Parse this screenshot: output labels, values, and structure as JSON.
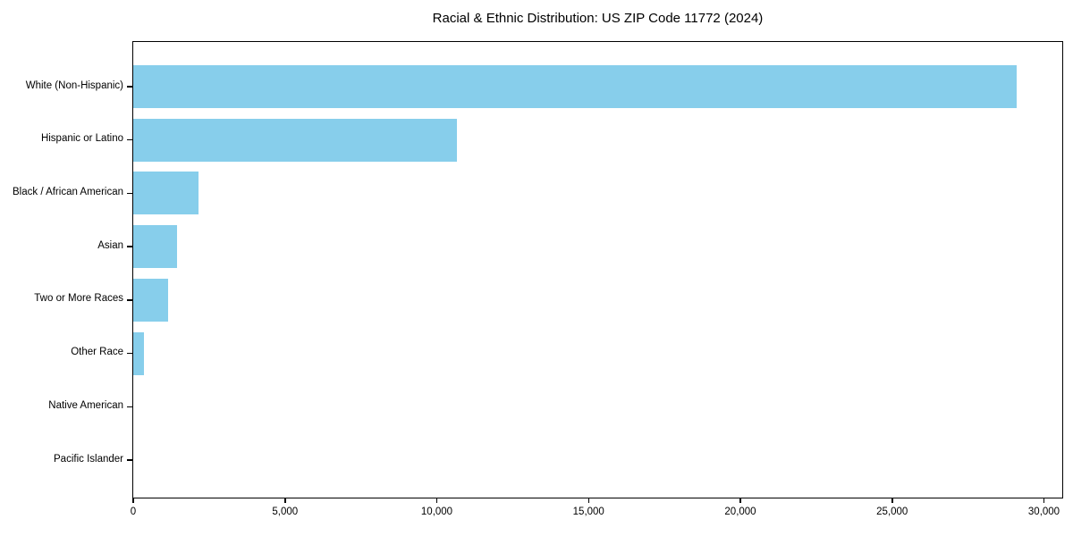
{
  "title": "Racial & Ethnic Distribution: US ZIP Code 11772 (2024)",
  "chart_data": {
    "type": "bar",
    "orientation": "horizontal",
    "title": "Racial & Ethnic Distribution: US ZIP Code 11772 (2024)",
    "categories": [
      "White (Non-Hispanic)",
      "Hispanic or Latino",
      "Black / African American",
      "Asian",
      "Two or More Races",
      "Other Race",
      "Native American",
      "Pacific Islander"
    ],
    "values": [
      29100,
      10650,
      2150,
      1440,
      1150,
      350,
      0,
      0
    ],
    "xlabel": "",
    "ylabel": "",
    "xlim": [
      0,
      30600
    ],
    "xticks": [
      0,
      5000,
      10000,
      15000,
      20000,
      25000,
      30000
    ],
    "xtick_labels": [
      "0",
      "5,000",
      "10,000",
      "15,000",
      "20,000",
      "25,000",
      "30,000"
    ],
    "bar_color": "#87CEEB",
    "axis_color": "#000000",
    "grid": false,
    "legend": null
  }
}
